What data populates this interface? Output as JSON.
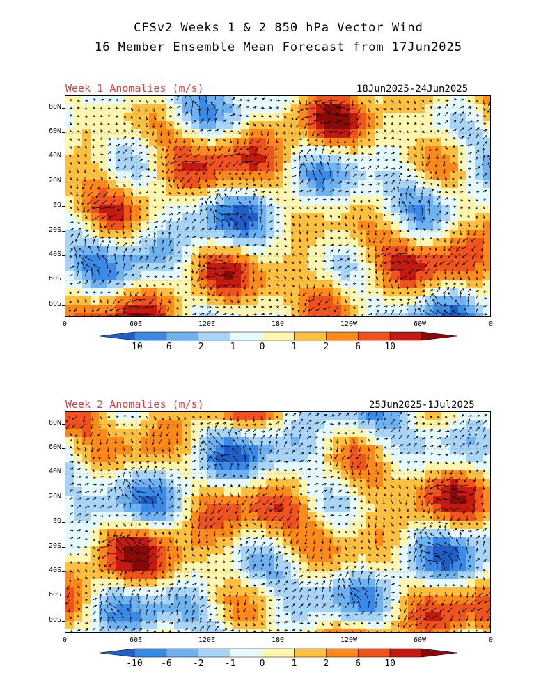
{
  "title_line1": "CFSv2 Weeks 1 & 2 850 hPa Vector Wind",
  "title_line2": "16 Member Ensemble Mean Forecast from 17Jun2025",
  "panels": [
    {
      "label": "Week 1 Anomalies (m/s)",
      "dates": "18Jun2025-24Jun2025"
    },
    {
      "label": "Week 2 Anomalies (m/s)",
      "dates": "25Jun2025-1Jul2025"
    }
  ],
  "y_ticks": [
    "80N",
    "60N",
    "40N",
    "20N",
    "EQ",
    "20S",
    "40S",
    "60S",
    "80S"
  ],
  "x_ticks": [
    "0",
    "60E",
    "120E",
    "180",
    "120W",
    "60W",
    "0"
  ],
  "colorbar": {
    "ticks": [
      "-10",
      "-6",
      "-2",
      "-1",
      "0",
      "1",
      "2",
      "6",
      "10"
    ],
    "colors": [
      "#1f5fc8",
      "#3a8be8",
      "#6fb2f2",
      "#a8d4f7",
      "#e6fbff",
      "#fff6b0",
      "#ffc040",
      "#ff8a1a",
      "#f0541c",
      "#c41a10",
      "#8a0a0a"
    ]
  },
  "colors": {
    "title_red": "#e8393a",
    "arrow": "#000000",
    "background": "#ffffff"
  }
}
